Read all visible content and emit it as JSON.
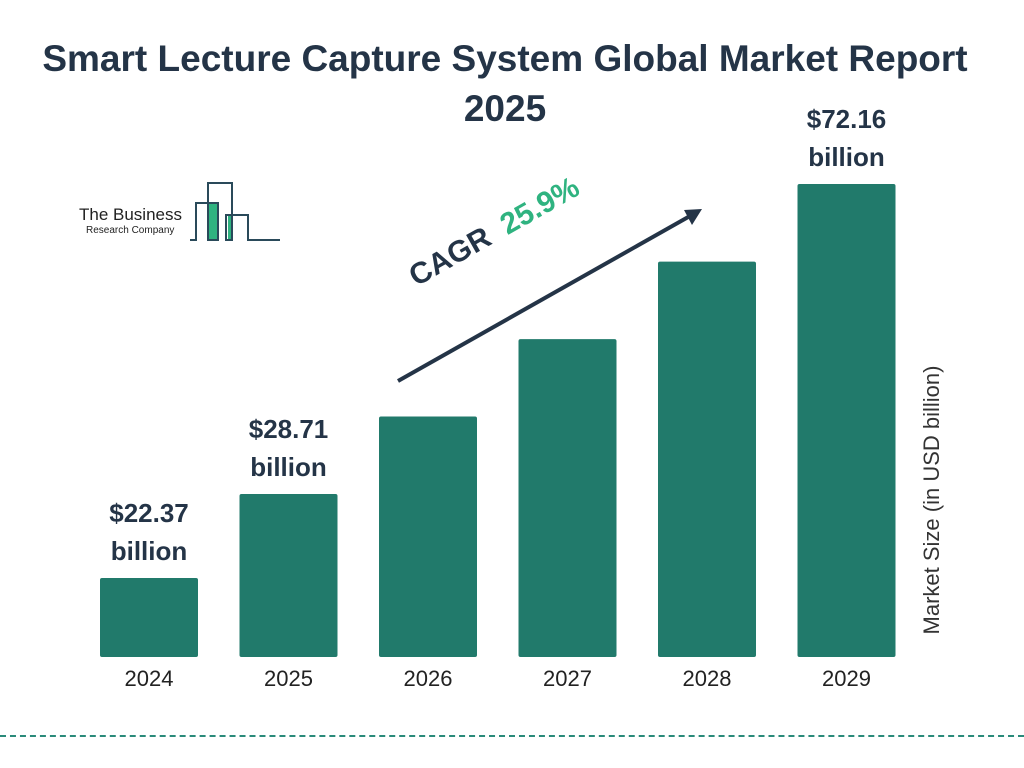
{
  "chart_data": {
    "type": "bar",
    "title": "Smart Lecture Capture System Global Market Report 2025",
    "categories": [
      "2024",
      "2025",
      "2026",
      "2027",
      "2028",
      "2029"
    ],
    "values": [
      22.37,
      28.71,
      36.15,
      45.51,
      57.3,
      72.16
    ],
    "data_labels": [
      "$22.37 billion",
      "$28.71 billion",
      "",
      "",
      "",
      "$72.16 billion"
    ],
    "ylabel": "Market Size (in USD billion)",
    "xlabel": "",
    "annotation": {
      "prefix": "CAGR",
      "value": "25.9%"
    },
    "grid": false,
    "bar_color": "#217a6b",
    "accent_color": "#2fb380",
    "text_color": "#243447"
  },
  "logo": {
    "line1": "The Business",
    "line2": "Research Company"
  }
}
